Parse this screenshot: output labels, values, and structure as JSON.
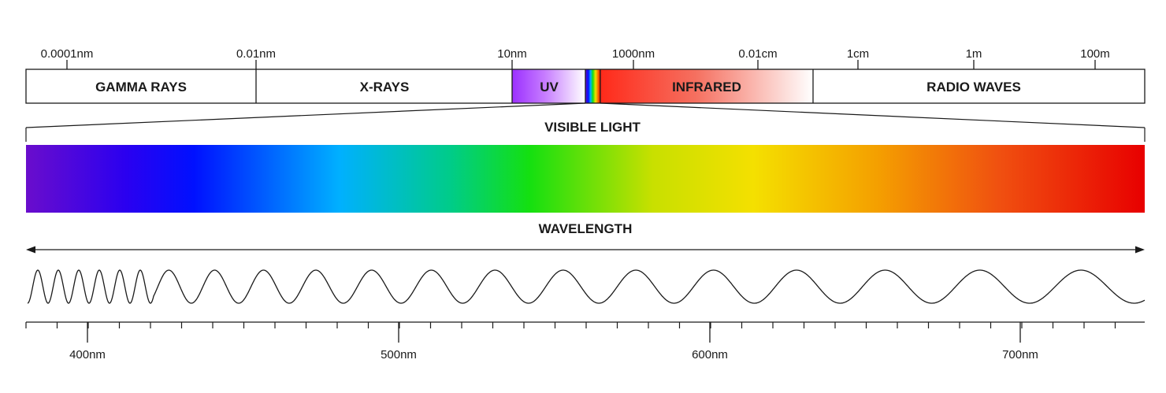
{
  "top_scale": {
    "ticks": [
      "0.0001nm",
      "0.01nm",
      "10nm",
      "1000nm",
      "0.01cm",
      "1cm",
      "1m",
      "100m"
    ]
  },
  "bands": {
    "gamma": "GAMMA RAYS",
    "xray": "X-RAYS",
    "uv": "UV",
    "infrared": "INFRARED",
    "radio": "RADIO WAVES"
  },
  "visible_title": "VISIBLE LIGHT",
  "wavelength_title": "WAVELENGTH",
  "bottom_scale": {
    "ticks": [
      "400nm",
      "500nm",
      "600nm",
      "700nm"
    ]
  },
  "colors": {
    "outline": "#1a1a1a",
    "uv_start": "#9b30ff",
    "infrared_start": "#ff2a1a",
    "spectrum": [
      "#6a0dcc",
      "#2a00f0",
      "#0010ff",
      "#00b0ff",
      "#00cc88",
      "#14e010",
      "#c8e000",
      "#f4e000",
      "#f4a000",
      "#f05010",
      "#e80000"
    ]
  }
}
